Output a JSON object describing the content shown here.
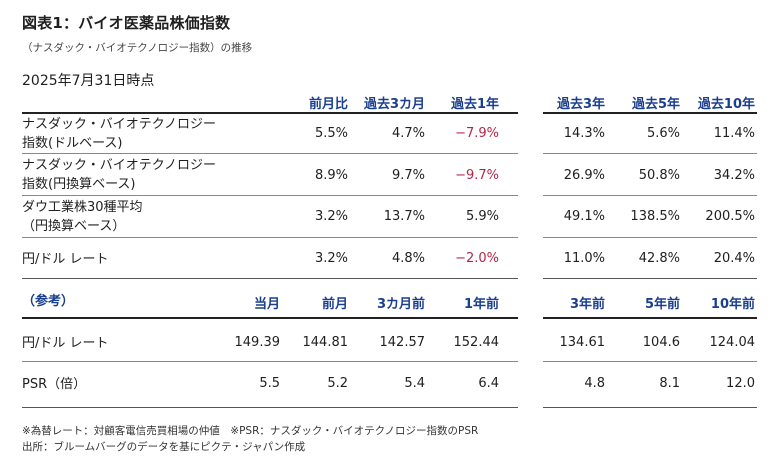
{
  "title": "図表1：バイオ医薬品株価指数",
  "subtitle": "（ナスダック・バイオテクノロジー指数）の推移",
  "date": "2025年7月31日時点",
  "perf_headers": [
    "前月比",
    "過去3カ月",
    "過去1年",
    "過去3年",
    "過去5年",
    "過去10年"
  ],
  "perf_rows": [
    {
      "label1": "ナスダック・バイオテクノロジー",
      "label2": "指数(ドルベース)",
      "values": [
        "5.5%",
        "4.7%",
        "−7.9%",
        "14.3%",
        "5.6%",
        "11.4%"
      ]
    },
    {
      "label1": "ナスダック・バイオテクノロジー",
      "label2": "指数(円換算ベース)",
      "values": [
        "8.9%",
        "9.7%",
        "−9.7%",
        "26.9%",
        "50.8%",
        "34.2%"
      ]
    },
    {
      "label1": "ダウ工業株30種平均",
      "label2": "（円換算ベース）",
      "values": [
        "3.2%",
        "13.7%",
        "5.9%",
        "49.1%",
        "138.5%",
        "200.5%"
      ]
    },
    {
      "label1": "円/ドル レート",
      "label2": "",
      "values": [
        "3.2%",
        "4.8%",
        "−2.0%",
        "11.0%",
        "42.8%",
        "20.4%"
      ]
    }
  ],
  "ref": {
    "label": "（参考）",
    "headers": [
      "当月",
      "前月",
      "3カ月前",
      "1年前",
      "3年前",
      "5年前",
      "10年前"
    ],
    "rows": [
      {
        "label": "円/ドル レート",
        "values": [
          "149.39",
          "144.81",
          "142.57",
          "152.44",
          "134.61",
          "104.6",
          "124.04"
        ]
      },
      {
        "label": "PSR（倍）",
        "values": [
          "5.5",
          "5.2",
          "5.4",
          "6.4",
          "4.8",
          "8.1",
          "12.0"
        ]
      }
    ]
  },
  "footnote1": "※為替レート：対顧客電信売買相場の仲値　※PSR：ナスダック・バイオテクノロジー指数のPSR",
  "footnote2": "出所：ブルームバーグのデータを基にピクテ・ジャパン作成",
  "colors": {
    "header": "#1b3f8f",
    "negative": "#b1264a"
  }
}
